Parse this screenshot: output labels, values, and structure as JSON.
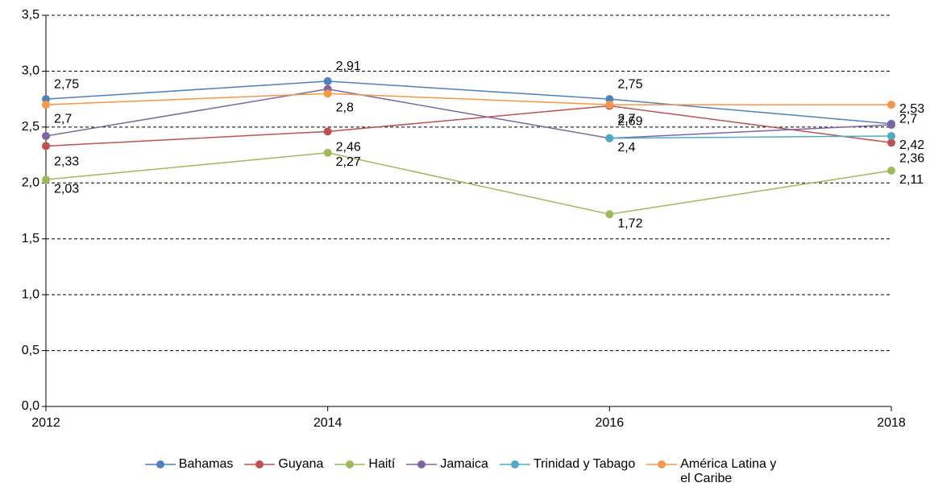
{
  "chart_data": {
    "type": "line",
    "x": [
      2012,
      2014,
      2016,
      2018
    ],
    "xlim": [
      2012,
      2018
    ],
    "xticks": [
      2012,
      2014,
      2016,
      2018
    ],
    "ylim": [
      0,
      3.5
    ],
    "yticks": [
      {
        "value": 0,
        "label": "0,0"
      },
      {
        "value": 0.5,
        "label": "0,5"
      },
      {
        "value": 1,
        "label": "1,0"
      },
      {
        "value": 1.5,
        "label": "1,5"
      },
      {
        "value": 2,
        "label": "2,0"
      },
      {
        "value": 2.5,
        "label": "2,5"
      },
      {
        "value": 3,
        "label": "3,0"
      },
      {
        "value": 3.5,
        "label": "3,5"
      }
    ],
    "grid": true,
    "legend": "bottom",
    "series": [
      {
        "name": "Bahamas",
        "color": "#4f81bd",
        "values": [
          2.75,
          2.91,
          2.75,
          2.53
        ],
        "value_labels": [
          "2,75",
          "2,91",
          "2,75",
          "2,53"
        ]
      },
      {
        "name": "Guyana",
        "color": "#c0504d",
        "values": [
          2.33,
          2.46,
          2.69,
          2.36
        ],
        "value_labels": [
          "2,33",
          "2,46",
          "2,69",
          "2,36"
        ]
      },
      {
        "name": "Haití",
        "color": "#9bbb59",
        "values": [
          2.03,
          2.27,
          1.72,
          2.11
        ],
        "value_labels": [
          "2,03",
          "2,27",
          "1,72",
          "2,11"
        ]
      },
      {
        "name": "Jamaica",
        "color": "#8064a2",
        "values": [
          2.42,
          2.84,
          2.4,
          2.52
        ]
      },
      {
        "name": "Trinidad y Tabago",
        "color": "#4bacc6",
        "values": [
          null,
          null,
          2.4,
          2.42
        ],
        "value_labels": [
          null,
          null,
          "2,4",
          "2,42"
        ]
      },
      {
        "name": "América Latina y el Caribe",
        "color": "#f79646",
        "values": [
          2.7,
          2.8,
          2.7,
          2.7
        ],
        "value_labels": [
          "2,7",
          "2,8",
          "2,7",
          "2,7"
        ]
      }
    ]
  }
}
